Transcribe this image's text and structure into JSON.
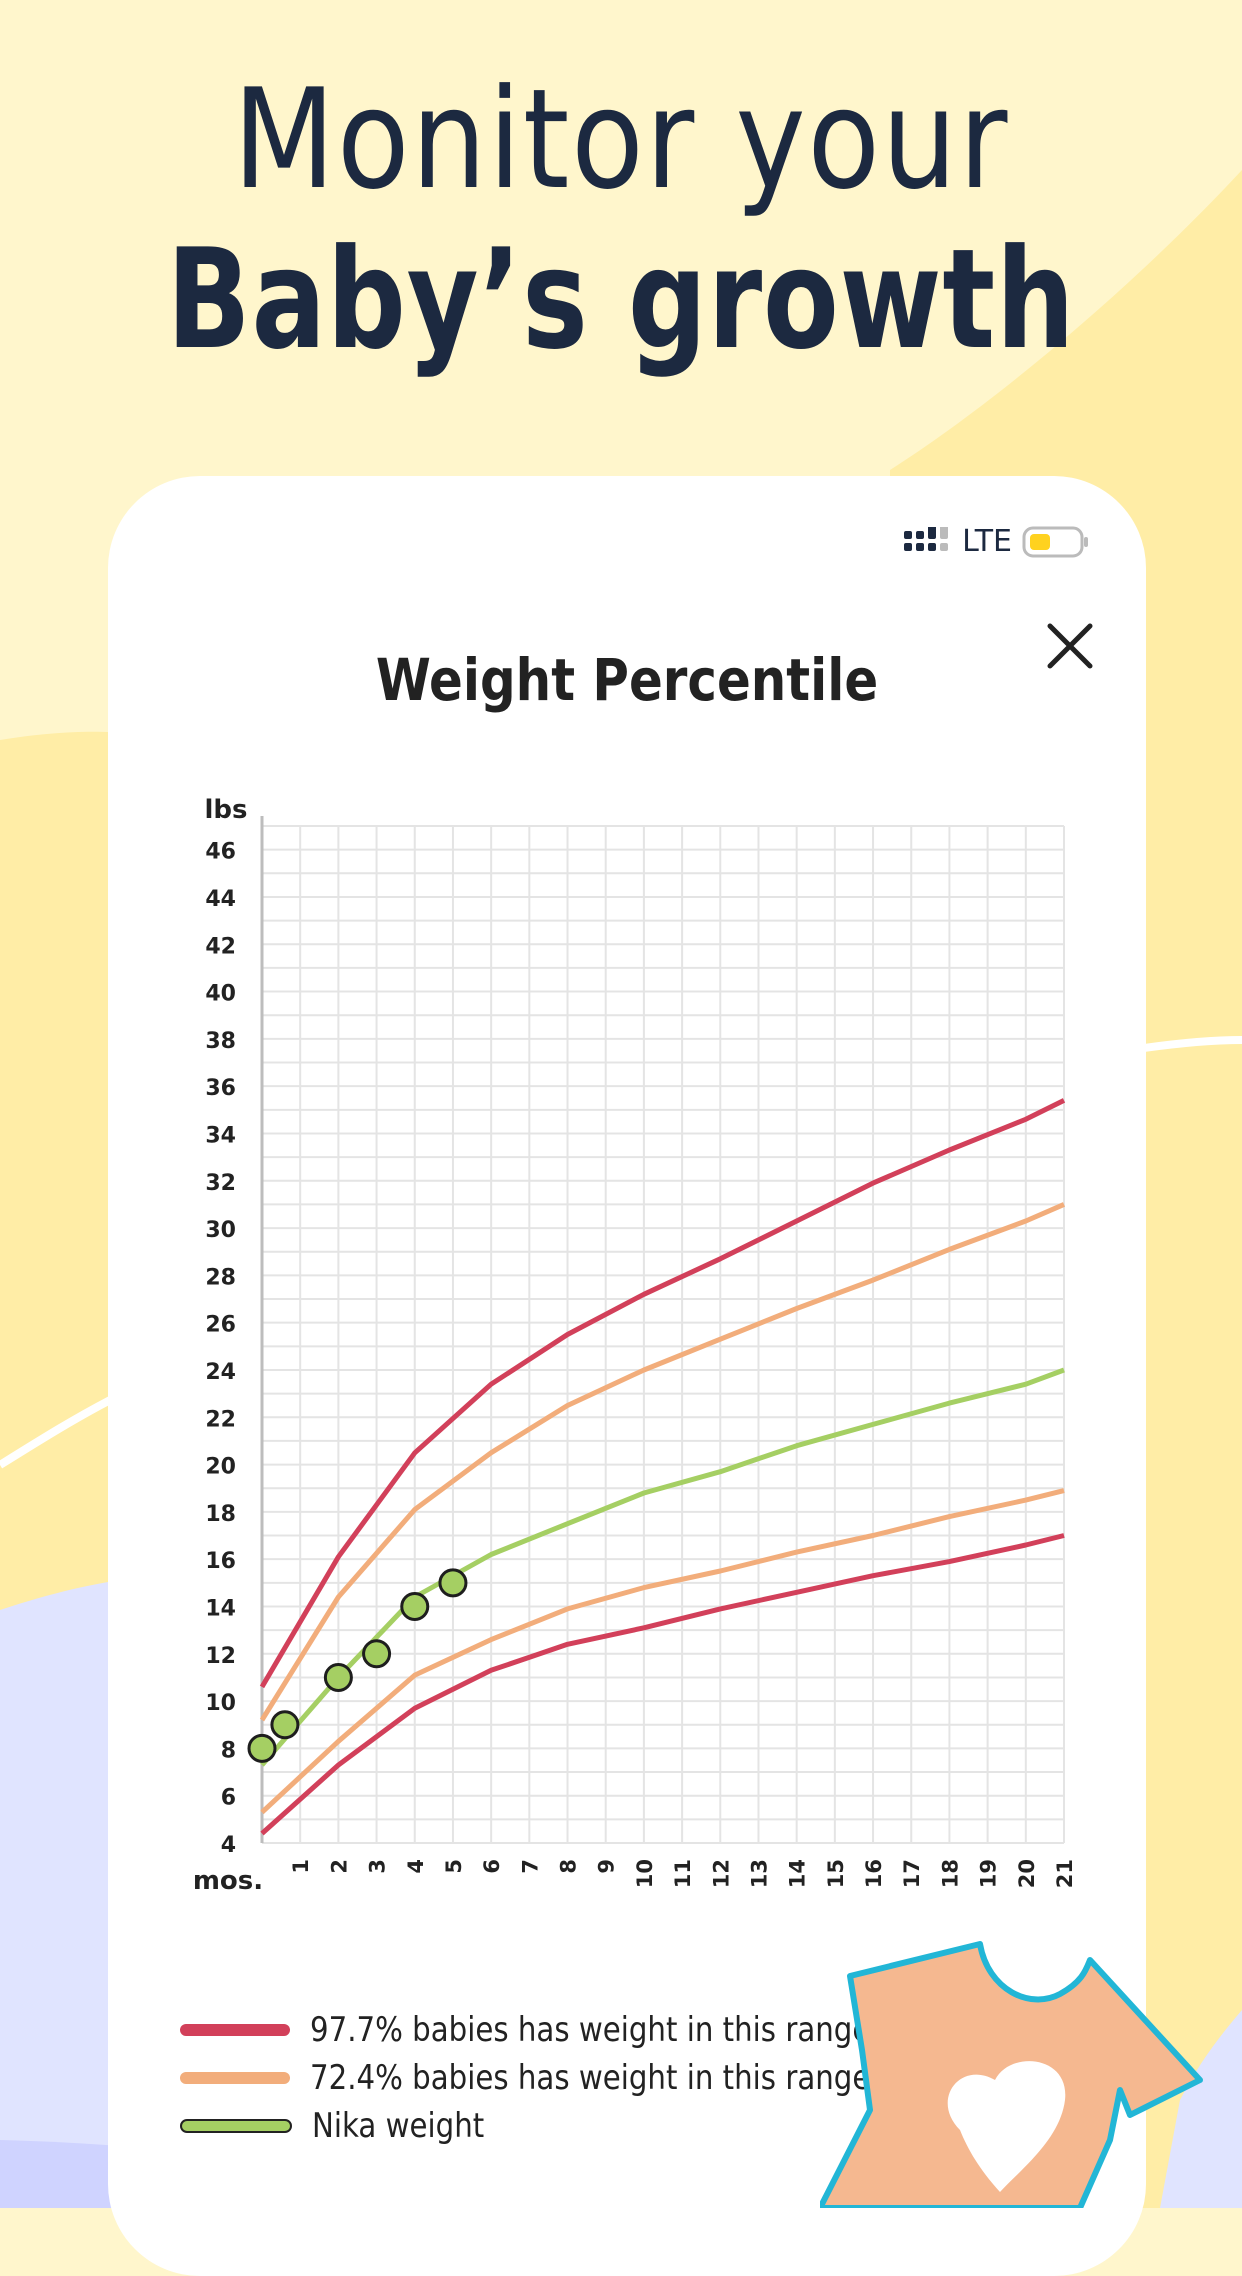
{
  "headline": {
    "line1": "Monitor your",
    "line2": "Baby’s growth"
  },
  "status_bar": {
    "network": "LTE",
    "battery_color": "#FFD21F"
  },
  "dialog": {
    "title": "Weight Percentile",
    "close_icon": "close-icon"
  },
  "colors": {
    "background": "#FFF6CC",
    "band_97": "#D2405A",
    "band_72": "#F2AD7B",
    "baby": "#A5CF63",
    "onesie": "#F5B890",
    "onesie_outline": "#22B6D6"
  },
  "chart_data": {
    "type": "line",
    "ylabel": "lbs",
    "xlabel": "mos.",
    "ylim": [
      4,
      47
    ],
    "xlim": [
      0,
      21
    ],
    "y_ticks": [
      4,
      6,
      8,
      10,
      12,
      14,
      16,
      18,
      20,
      22,
      24,
      26,
      28,
      30,
      32,
      34,
      36,
      38,
      40,
      42,
      44,
      46
    ],
    "x_ticks": [
      1,
      2,
      3,
      4,
      5,
      6,
      7,
      8,
      9,
      10,
      11,
      12,
      13,
      14,
      15,
      16,
      17,
      18,
      19,
      20,
      21
    ],
    "grid": true,
    "series": [
      {
        "name": "97.7% babies has weight in this range",
        "upper": [
          [
            0,
            10.6
          ],
          [
            2,
            16.1
          ],
          [
            4,
            20.5
          ],
          [
            6,
            23.4
          ],
          [
            8,
            25.5
          ],
          [
            10,
            27.2
          ],
          [
            12,
            28.7
          ],
          [
            14,
            30.3
          ],
          [
            16,
            31.9
          ],
          [
            18,
            33.3
          ],
          [
            20,
            34.6
          ],
          [
            21,
            35.4
          ]
        ],
        "lower": [
          [
            0,
            4.4
          ],
          [
            2,
            7.3
          ],
          [
            4,
            9.7
          ],
          [
            6,
            11.3
          ],
          [
            8,
            12.4
          ],
          [
            10,
            13.1
          ],
          [
            12,
            13.9
          ],
          [
            14,
            14.6
          ],
          [
            16,
            15.3
          ],
          [
            18,
            15.9
          ],
          [
            20,
            16.6
          ],
          [
            21,
            17.0
          ]
        ]
      },
      {
        "name": "72.4% babies has weight in this range",
        "upper": [
          [
            0,
            9.2
          ],
          [
            2,
            14.4
          ],
          [
            4,
            18.1
          ],
          [
            6,
            20.5
          ],
          [
            8,
            22.5
          ],
          [
            10,
            24.0
          ],
          [
            12,
            25.3
          ],
          [
            14,
            26.6
          ],
          [
            16,
            27.8
          ],
          [
            18,
            29.1
          ],
          [
            20,
            30.3
          ],
          [
            21,
            31.0
          ]
        ],
        "lower": [
          [
            0,
            5.3
          ],
          [
            2,
            8.3
          ],
          [
            4,
            11.1
          ],
          [
            6,
            12.6
          ],
          [
            8,
            13.9
          ],
          [
            10,
            14.8
          ],
          [
            12,
            15.5
          ],
          [
            14,
            16.3
          ],
          [
            16,
            17.0
          ],
          [
            18,
            17.8
          ],
          [
            20,
            18.5
          ],
          [
            21,
            18.9
          ]
        ]
      },
      {
        "name": "Nika weight",
        "line": [
          [
            0,
            7.3
          ],
          [
            2,
            11.0
          ],
          [
            4,
            14.4
          ],
          [
            6,
            16.2
          ],
          [
            8,
            17.5
          ],
          [
            10,
            18.8
          ],
          [
            12,
            19.7
          ],
          [
            14,
            20.8
          ],
          [
            16,
            21.7
          ],
          [
            18,
            22.6
          ],
          [
            20,
            23.4
          ],
          [
            21,
            24.0
          ]
        ],
        "points": [
          [
            0,
            8
          ],
          [
            0.6,
            9
          ],
          [
            2,
            11
          ],
          [
            3,
            12
          ],
          [
            4,
            14
          ],
          [
            5,
            15
          ]
        ]
      }
    ]
  },
  "legend": [
    {
      "label": "97.7% babies has weight in this range"
    },
    {
      "label": "72.4% babies has weight in this range"
    },
    {
      "label": "Nika weight"
    }
  ]
}
